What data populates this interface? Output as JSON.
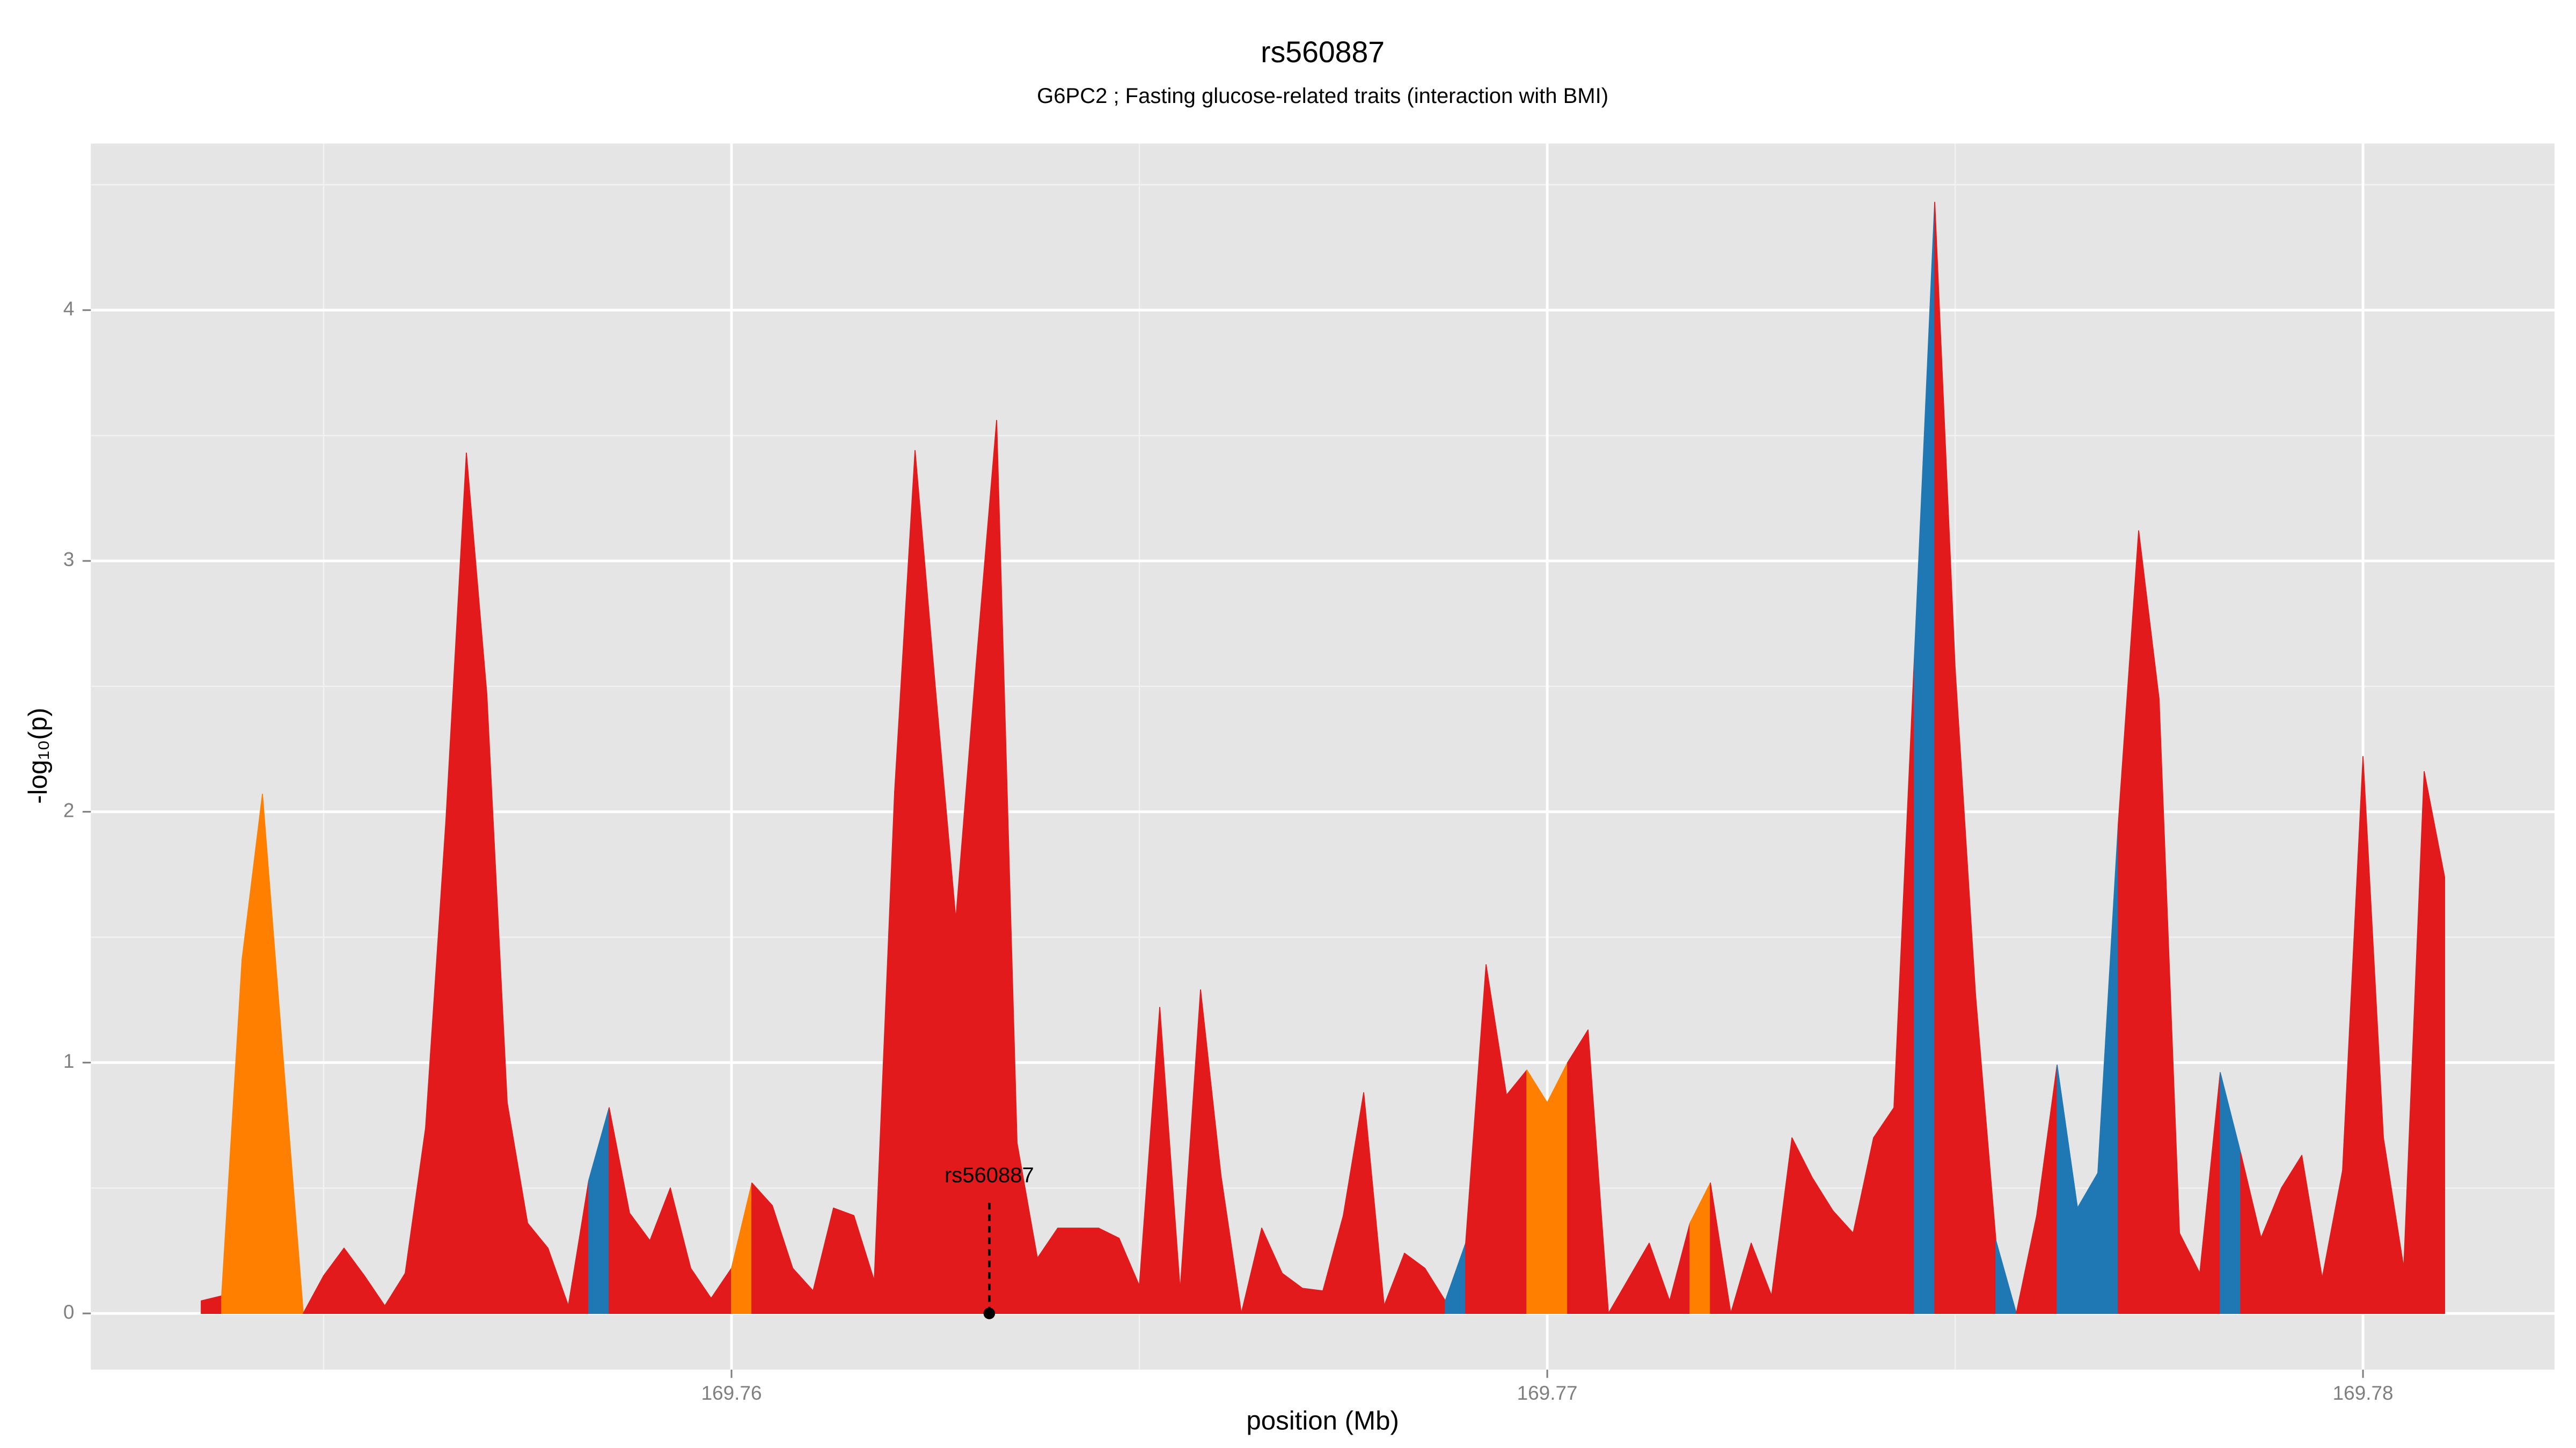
{
  "chart_data": {
    "type": "area",
    "title": "rs560887",
    "subtitle": "G6PC2 ; Fasting glucose-related traits (interaction with BMI)",
    "xlabel": "position (Mb)",
    "ylabel": "-log₁₀(p)",
    "x": [
      169.7535,
      169.75375,
      169.754,
      169.75425,
      169.7545,
      169.75475,
      169.755,
      169.75525,
      169.7555,
      169.75575,
      169.756,
      169.75625,
      169.7565,
      169.75675,
      169.757,
      169.75725,
      169.7575,
      169.75775,
      169.758,
      169.75825,
      169.7585,
      169.75875,
      169.759,
      169.75925,
      169.7595,
      169.75975,
      169.76,
      169.76025,
      169.7605,
      169.76075,
      169.761,
      169.76125,
      169.7615,
      169.76175,
      169.762,
      169.76225,
      169.7625,
      169.76275,
      169.763,
      169.76325,
      169.7635,
      169.76375,
      169.764,
      169.76425,
      169.7645,
      169.76475,
      169.765,
      169.76525,
      169.7655,
      169.76575,
      169.766,
      169.76625,
      169.7665,
      169.76675,
      169.767,
      169.76725,
      169.7675,
      169.76775,
      169.768,
      169.76825,
      169.7685,
      169.76875,
      169.769,
      169.76925,
      169.7695,
      169.76975,
      169.77,
      169.77025,
      169.7705,
      169.77075,
      169.771,
      169.77125,
      169.7715,
      169.77175,
      169.772,
      169.77225,
      169.7725,
      169.77275,
      169.773,
      169.77325,
      169.7735,
      169.77375,
      169.774,
      169.77425,
      169.7745,
      169.77475,
      169.775,
      169.77525,
      169.7755,
      169.77575,
      169.776,
      169.77625,
      169.7765,
      169.77675,
      169.777,
      169.77725,
      169.7775,
      169.77775,
      169.778,
      169.77825,
      169.7785,
      169.77875,
      169.779,
      169.77925,
      169.7795,
      169.77975,
      169.78,
      169.78025,
      169.7805,
      169.78075,
      169.781
    ],
    "values": [
      0.05,
      0.07,
      1.41,
      2.07,
      1.03,
      0,
      0.15,
      0.26,
      0.15,
      0.03,
      0.16,
      0.74,
      1.97,
      3.43,
      2.47,
      0.84,
      0.36,
      0.26,
      0.03,
      0.53,
      0.82,
      0.4,
      0.29,
      0.5,
      0.18,
      0.06,
      0.18,
      0.52,
      0.43,
      0.18,
      0.09,
      0.42,
      0.39,
      0.13,
      2.08,
      3.44,
      2.49,
      1.57,
      2.59,
      3.56,
      0.68,
      0.22,
      0.34,
      0.34,
      0.34,
      0.3,
      0.11,
      1.22,
      0.09,
      1.29,
      0.55,
      0,
      0.34,
      0.16,
      0.1,
      0.09,
      0.39,
      0.88,
      0.03,
      0.24,
      0.18,
      0.05,
      0.28,
      1.39,
      0.87,
      0.97,
      0.84,
      1.0,
      1.13,
      0,
      0.14,
      0.28,
      0.05,
      0.36,
      0.52,
      0,
      0.28,
      0.07,
      0.7,
      0.54,
      0.41,
      0.32,
      0.7,
      0.82,
      2.61,
      4.43,
      2.57,
      1.27,
      0.29,
      0,
      0.39,
      0.99,
      0.42,
      0.56,
      1.95,
      3.12,
      2.45,
      0.32,
      0.16,
      0.96,
      0.64,
      0.3,
      0.5,
      0.63,
      0.14,
      0.57,
      2.22,
      0.7,
      0.18,
      2.16,
      1.74
    ],
    "colors": [
      "#e31a1c",
      "#ff7f00",
      "#ff7f00",
      "#ff7f00",
      "#ff7f00",
      "#e31a1c",
      "#e31a1c",
      "#e31a1c",
      "#e31a1c",
      "#e31a1c",
      "#e31a1c",
      "#e31a1c",
      "#e31a1c",
      "#e31a1c",
      "#e31a1c",
      "#e31a1c",
      "#e31a1c",
      "#e31a1c",
      "#e31a1c",
      "#1f78b4",
      "#e31a1c",
      "#e31a1c",
      "#e31a1c",
      "#e31a1c",
      "#e31a1c",
      "#e31a1c",
      "#ff7f00",
      "#e31a1c",
      "#e31a1c",
      "#e31a1c",
      "#e31a1c",
      "#e31a1c",
      "#e31a1c",
      "#e31a1c",
      "#e31a1c",
      "#e31a1c",
      "#e31a1c",
      "#e31a1c",
      "#e31a1c",
      "#e31a1c",
      "#e31a1c",
      "#e31a1c",
      "#e31a1c",
      "#e31a1c",
      "#e31a1c",
      "#e31a1c",
      "#e31a1c",
      "#e31a1c",
      "#e31a1c",
      "#e31a1c",
      "#e31a1c",
      "#e31a1c",
      "#e31a1c",
      "#e31a1c",
      "#e31a1c",
      "#e31a1c",
      "#e31a1c",
      "#e31a1c",
      "#e31a1c",
      "#e31a1c",
      "#e31a1c",
      "#1f78b4",
      "#e31a1c",
      "#e31a1c",
      "#e31a1c",
      "#ff7f00",
      "#ff7f00",
      "#e31a1c",
      "#e31a1c",
      "#e31a1c",
      "#e31a1c",
      "#e31a1c",
      "#e31a1c",
      "#ff7f00",
      "#e31a1c",
      "#e31a1c",
      "#e31a1c",
      "#e31a1c",
      "#e31a1c",
      "#e31a1c",
      "#e31a1c",
      "#e31a1c",
      "#e31a1c",
      "#e31a1c",
      "#1f78b4",
      "#e31a1c",
      "#e31a1c",
      "#e31a1c",
      "#1f78b4",
      "#e31a1c",
      "#e31a1c",
      "#1f78b4",
      "#1f78b4",
      "#1f78b4",
      "#e31a1c",
      "#e31a1c",
      "#e31a1c",
      "#e31a1c",
      "#e31a1c",
      "#1f78b4",
      "#e31a1c",
      "#e31a1c",
      "#e31a1c",
      "#e31a1c",
      "#e31a1c",
      "#e31a1c",
      "#e31a1c",
      "#e31a1c",
      "#e31a1c",
      "#e31a1c",
      "#e31a1c"
    ],
    "annotations": [
      {
        "text": "rs560887",
        "x": 169.76316,
        "y": 0
      }
    ],
    "xlim": [
      169.752146,
      169.782348
    ],
    "ylim": [
      -0.224,
      4.664
    ],
    "xticks": [
      169.76,
      169.77,
      169.78
    ],
    "yticks": [
      0,
      1,
      2,
      3,
      4
    ],
    "x_minor_ticks": [
      169.755,
      169.765,
      169.775
    ],
    "y_minor_ticks": [
      0.5,
      1.5,
      2.5,
      3.5,
      4.5
    ],
    "grid": true
  }
}
